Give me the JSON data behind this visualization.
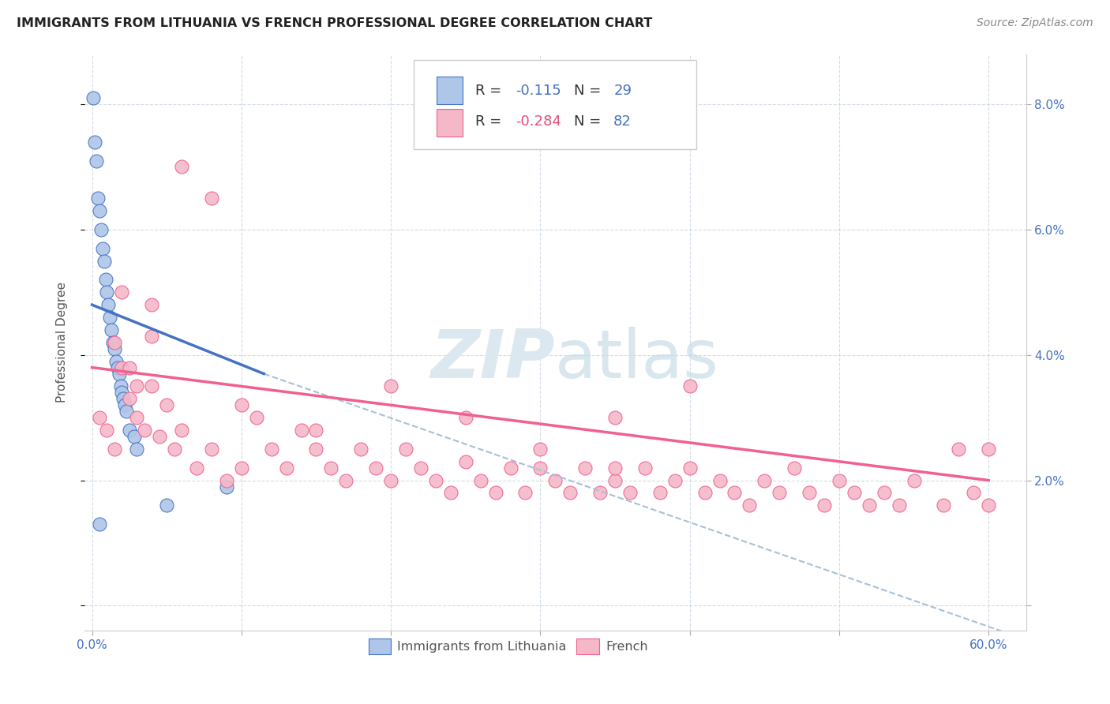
{
  "title": "IMMIGRANTS FROM LITHUANIA VS FRENCH PROFESSIONAL DEGREE CORRELATION CHART",
  "source": "Source: ZipAtlas.com",
  "ylabel": "Professional Degree",
  "blue_color": "#aec6e8",
  "pink_color": "#f4b8c8",
  "blue_line_color": "#4472c4",
  "pink_line_color": "#f06090",
  "dashed_line_color": "#a8c0d8",
  "watermark_color": "#dce8f0",
  "blue_scatter": {
    "x": [
      0.001,
      0.002,
      0.003,
      0.004,
      0.005,
      0.006,
      0.007,
      0.008,
      0.009,
      0.01,
      0.011,
      0.012,
      0.013,
      0.014,
      0.015,
      0.016,
      0.017,
      0.018,
      0.019,
      0.02,
      0.021,
      0.022,
      0.023,
      0.025,
      0.028,
      0.03,
      0.05,
      0.09,
      0.005
    ],
    "y": [
      0.081,
      0.074,
      0.071,
      0.065,
      0.063,
      0.06,
      0.057,
      0.055,
      0.052,
      0.05,
      0.048,
      0.046,
      0.044,
      0.042,
      0.041,
      0.039,
      0.038,
      0.037,
      0.035,
      0.034,
      0.033,
      0.032,
      0.031,
      0.028,
      0.027,
      0.025,
      0.016,
      0.019,
      0.013
    ]
  },
  "pink_scatter": {
    "x": [
      0.005,
      0.01,
      0.015,
      0.02,
      0.025,
      0.03,
      0.035,
      0.04,
      0.045,
      0.05,
      0.055,
      0.06,
      0.07,
      0.08,
      0.09,
      0.1,
      0.11,
      0.12,
      0.13,
      0.14,
      0.15,
      0.16,
      0.17,
      0.18,
      0.19,
      0.2,
      0.21,
      0.22,
      0.23,
      0.24,
      0.25,
      0.26,
      0.27,
      0.28,
      0.29,
      0.3,
      0.31,
      0.32,
      0.33,
      0.34,
      0.35,
      0.36,
      0.37,
      0.38,
      0.39,
      0.4,
      0.41,
      0.42,
      0.43,
      0.44,
      0.45,
      0.46,
      0.47,
      0.48,
      0.49,
      0.5,
      0.51,
      0.52,
      0.53,
      0.54,
      0.55,
      0.57,
      0.59,
      0.6,
      0.02,
      0.04,
      0.06,
      0.08,
      0.1,
      0.15,
      0.2,
      0.25,
      0.3,
      0.35,
      0.4,
      0.35,
      0.58,
      0.6,
      0.04,
      0.03,
      0.025,
      0.015
    ],
    "y": [
      0.03,
      0.028,
      0.025,
      0.038,
      0.033,
      0.03,
      0.028,
      0.035,
      0.027,
      0.032,
      0.025,
      0.028,
      0.022,
      0.025,
      0.02,
      0.022,
      0.03,
      0.025,
      0.022,
      0.028,
      0.025,
      0.022,
      0.02,
      0.025,
      0.022,
      0.02,
      0.025,
      0.022,
      0.02,
      0.018,
      0.023,
      0.02,
      0.018,
      0.022,
      0.018,
      0.022,
      0.02,
      0.018,
      0.022,
      0.018,
      0.02,
      0.018,
      0.022,
      0.018,
      0.02,
      0.022,
      0.018,
      0.02,
      0.018,
      0.016,
      0.02,
      0.018,
      0.022,
      0.018,
      0.016,
      0.02,
      0.018,
      0.016,
      0.018,
      0.016,
      0.02,
      0.016,
      0.018,
      0.016,
      0.05,
      0.048,
      0.07,
      0.065,
      0.032,
      0.028,
      0.035,
      0.03,
      0.025,
      0.022,
      0.035,
      0.03,
      0.025,
      0.025,
      0.043,
      0.035,
      0.038,
      0.042
    ]
  },
  "blue_line": {
    "x0": 0.0,
    "x1": 0.115,
    "y0": 0.048,
    "y1": 0.037
  },
  "pink_line": {
    "x0": 0.0,
    "x1": 0.6,
    "y0": 0.038,
    "y1": 0.02
  },
  "dash_line": {
    "x0": 0.115,
    "x1": 0.62,
    "y0": 0.037,
    "y1": -0.005
  },
  "xlim": [
    -0.005,
    0.625
  ],
  "ylim": [
    -0.004,
    0.088
  ],
  "x_ticks": [
    0.0,
    0.1,
    0.2,
    0.3,
    0.4,
    0.5,
    0.6
  ],
  "x_tick_labels": [
    "0.0%",
    "",
    "",
    "",
    "",
    "",
    "60.0%"
  ],
  "y_ticks": [
    0.0,
    0.02,
    0.04,
    0.06,
    0.08
  ],
  "y_tick_labels_right": [
    "",
    "2.0%",
    "4.0%",
    "6.0%",
    "8.0%"
  ],
  "legend_box": {
    "row1_r": "R = ",
    "row1_rv": " -0.115",
    "row1_n": "  N = ",
    "row1_nv": "29",
    "row2_r": "R = ",
    "row2_rv": "-0.284",
    "row2_n": "  N = ",
    "row2_nv": "82"
  },
  "bottom_legend": [
    "Immigrants from Lithuania",
    "French"
  ]
}
